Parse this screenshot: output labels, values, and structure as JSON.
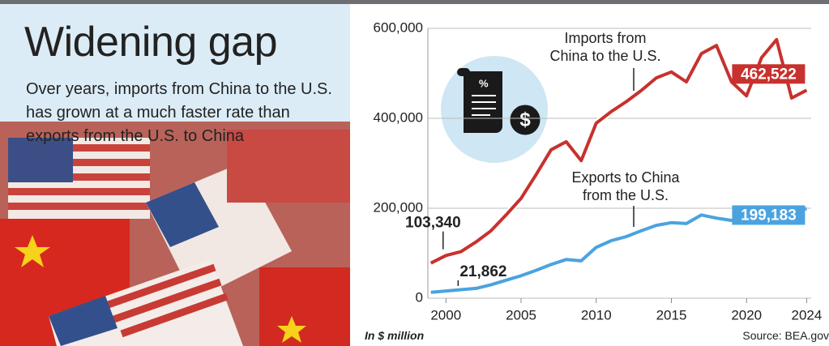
{
  "title": "Widening gap",
  "subtitle": "Over years, imports from China to the U.S. has grown at a much faster rate than exports from the U.S. to China",
  "chart_data": {
    "type": "line",
    "x": [
      1999,
      2000,
      2001,
      2002,
      2003,
      2004,
      2005,
      2006,
      2007,
      2008,
      2009,
      2010,
      2011,
      2012,
      2013,
      2014,
      2015,
      2016,
      2017,
      2018,
      2019,
      2020,
      2021,
      2022,
      2023,
      2024
    ],
    "series": [
      {
        "name": "Imports from China to the U.S.",
        "color": "#c8312d",
        "values": [
          78000,
          95000,
          103340,
          125000,
          150000,
          185000,
          222000,
          275000,
          330000,
          348000,
          306000,
          389000,
          415000,
          437000,
          462000,
          490000,
          503000,
          481000,
          544000,
          562000,
          481000,
          450000,
          535000,
          575000,
          445000,
          462522
        ],
        "value_labels": [
          null,
          null,
          "103,340",
          null,
          null,
          null,
          null,
          null,
          null,
          null,
          null,
          null,
          null,
          null,
          null,
          null,
          null,
          null,
          null,
          null,
          null,
          null,
          null,
          null,
          null,
          "462,522"
        ]
      },
      {
        "name": "Exports to China from the U.S.",
        "color": "#4aa3df",
        "values": [
          13000,
          16000,
          19000,
          21862,
          30000,
          40000,
          50000,
          62000,
          75000,
          86000,
          83000,
          113000,
          128000,
          137000,
          150000,
          162000,
          168000,
          166000,
          185000,
          178000,
          173000,
          168000,
          191000,
          195000,
          193000,
          199183
        ],
        "value_labels": [
          null,
          null,
          null,
          "21,862",
          null,
          null,
          null,
          null,
          null,
          null,
          null,
          null,
          null,
          null,
          null,
          null,
          null,
          null,
          null,
          null,
          null,
          null,
          null,
          null,
          null,
          "199,183"
        ]
      }
    ],
    "xlim": [
      1998.8,
      2024.3
    ],
    "xticks": [
      2000,
      2005,
      2010,
      2015,
      2020,
      2024
    ],
    "ylim": [
      0,
      600000
    ],
    "yticks": [
      0,
      {
        "value": 200000,
        "label": "200,000"
      },
      {
        "value": 400000,
        "label": "400,000"
      },
      {
        "value": 600000,
        "label": "600,000"
      }
    ],
    "grid": true,
    "y_unit_note": "In $ million",
    "source": "Source: BEA.gov"
  }
}
